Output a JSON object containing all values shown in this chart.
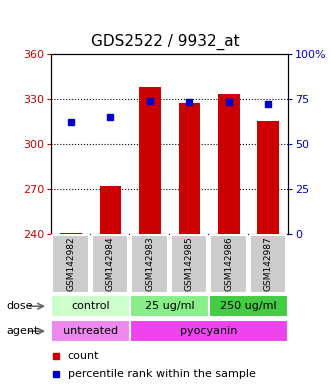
{
  "title": "GDS2522 / 9932_at",
  "samples": [
    "GSM142982",
    "GSM142984",
    "GSM142983",
    "GSM142985",
    "GSM142986",
    "GSM142987"
  ],
  "bar_values": [
    241,
    272,
    338,
    327,
    333,
    315
  ],
  "bar_bottom": 240,
  "percentile_values": [
    62,
    65,
    74,
    73,
    73,
    72
  ],
  "ylim_left": [
    240,
    360
  ],
  "ylim_right": [
    0,
    100
  ],
  "yticks_left": [
    240,
    270,
    300,
    330,
    360
  ],
  "yticks_right": [
    0,
    25,
    50,
    75,
    100
  ],
  "grid_lines": [
    270,
    300,
    330
  ],
  "bar_color": "#cc0000",
  "percentile_color": "#0000cc",
  "dose_groups": [
    {
      "label": "control",
      "start": 0,
      "end": 2,
      "color": "#ccffcc"
    },
    {
      "label": "25 ug/ml",
      "start": 2,
      "end": 4,
      "color": "#88ee88"
    },
    {
      "label": "250 ug/ml",
      "start": 4,
      "end": 6,
      "color": "#44cc44"
    }
  ],
  "agent_groups": [
    {
      "label": "untreated",
      "start": 0,
      "end": 2,
      "color": "#ee88ee"
    },
    {
      "label": "pyocyanin",
      "start": 2,
      "end": 6,
      "color": "#ee44ee"
    }
  ],
  "legend_count": "count",
  "legend_percentile": "percentile rank within the sample",
  "dose_row_label": "dose",
  "agent_row_label": "agent",
  "sample_box_color": "#cccccc",
  "bar_width": 0.55,
  "title_fontsize": 11,
  "tick_fontsize": 8,
  "label_fontsize": 8,
  "sample_fontsize": 6.5,
  "legend_fontsize": 8
}
